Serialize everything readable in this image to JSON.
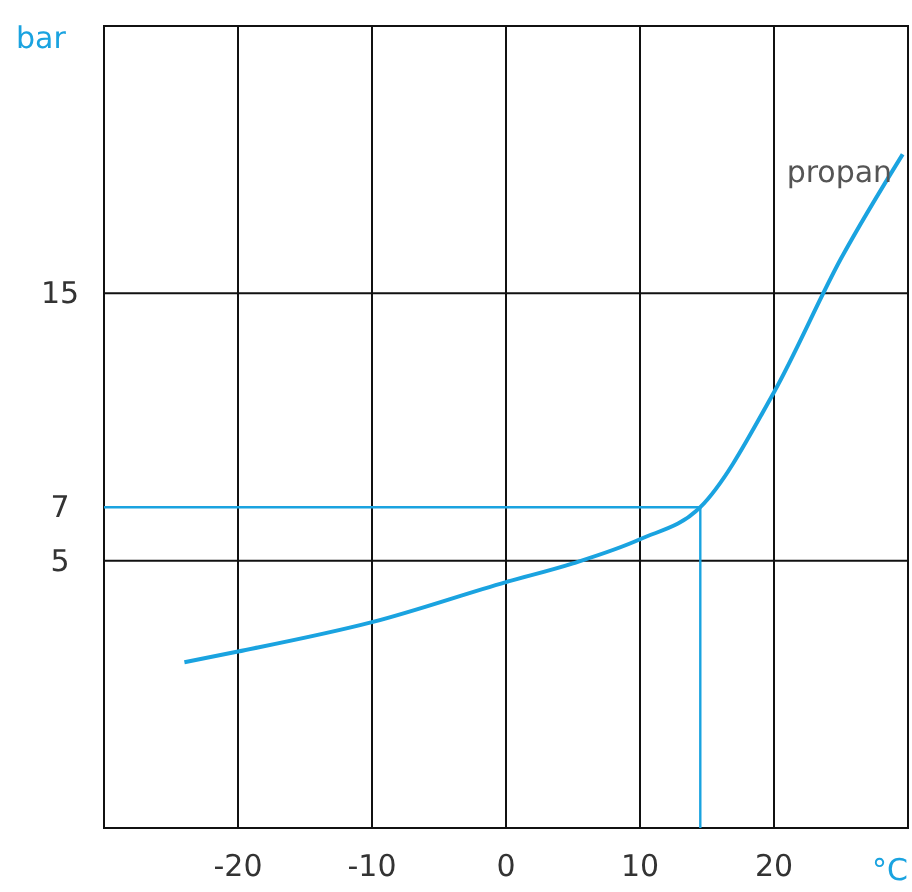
{
  "chart_data": {
    "type": "line",
    "xlabel": "°C",
    "ylabel": "bar",
    "x": [
      -24,
      -20,
      -10,
      0,
      5,
      10,
      14.5,
      20,
      25,
      29.6
    ],
    "series": [
      {
        "name": "propan",
        "color": "#1aa3e0",
        "values": [
          1.2,
          1.6,
          2.7,
          4.2,
          4.9,
          5.8,
          7,
          11.3,
          16.3,
          20.2
        ]
      }
    ],
    "xlim": [
      -30,
      30
    ],
    "xticks": [
      -20,
      -10,
      0,
      10,
      20
    ],
    "ylim": [
      -5,
      25
    ],
    "yticks": [
      5,
      15
    ],
    "grid": true,
    "ref_lines": [
      {
        "axis": "y",
        "value": 7,
        "label": "7",
        "color": "#1aa3e0"
      },
      {
        "axis": "x",
        "value": 14.5,
        "color": "#1aa3e0"
      }
    ]
  }
}
